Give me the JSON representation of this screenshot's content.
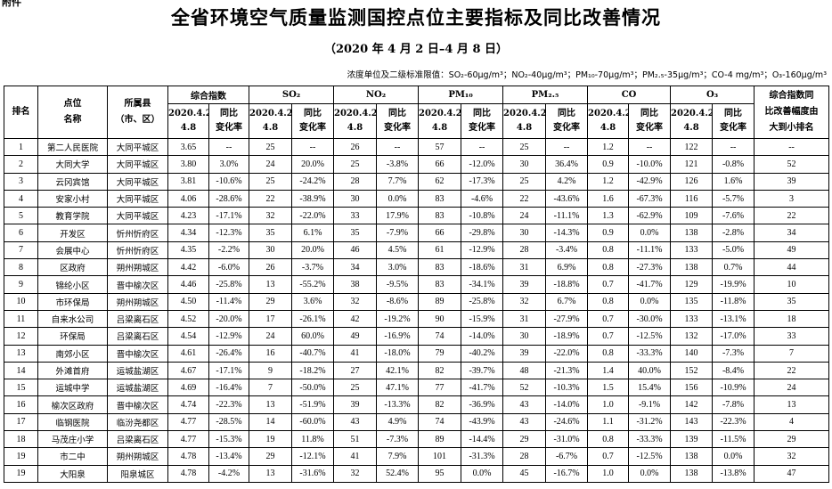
{
  "corner_label": "附件",
  "title": "全省环境空气质量监测国控点位主要指标及同比改善情况",
  "subtitle": "（2020 年 4 月 2 日–4 月 8 日）",
  "note": "浓度单位及二级标准限值：SO₂-60μg/m³；NO₂-40μg/m³；PM₁₀-70μg/m³；PM₂.₅-35μg/m³；CO-4 mg/m³；O₃-160μg/m³",
  "headers": {
    "rank": "排名",
    "site": "点位\n名称",
    "county": "所属县\n（市、区）",
    "groups": [
      "综合指数",
      "SO₂",
      "NO₂",
      "PM₁₀",
      "PM₂.₅",
      "CO",
      "O₃"
    ],
    "period": "2020.4.2-\n4.8",
    "change": "同比\n变化率",
    "last": "综合指数同\n比改善幅度由\n大到小排名"
  },
  "rows": [
    [
      "1",
      "第二人民医院",
      "大同平城区",
      "3.65",
      "--",
      "25",
      "--",
      "26",
      "--",
      "57",
      "--",
      "25",
      "--",
      "1.2",
      "--",
      "122",
      "--",
      "--"
    ],
    [
      "2",
      "大同大学",
      "大同平城区",
      "3.80",
      "3.0%",
      "24",
      "20.0%",
      "25",
      "-3.8%",
      "66",
      "-12.0%",
      "30",
      "36.4%",
      "0.9",
      "-10.0%",
      "121",
      "-0.8%",
      "52"
    ],
    [
      "3",
      "云冈宾馆",
      "大同平城区",
      "3.81",
      "-10.6%",
      "25",
      "-24.2%",
      "28",
      "7.7%",
      "62",
      "-17.3%",
      "25",
      "4.2%",
      "1.2",
      "-42.9%",
      "126",
      "1.6%",
      "39"
    ],
    [
      "4",
      "安家小村",
      "大同平城区",
      "4.06",
      "-28.6%",
      "22",
      "-38.9%",
      "30",
      "0.0%",
      "83",
      "-4.6%",
      "22",
      "-43.6%",
      "1.6",
      "-67.3%",
      "116",
      "-5.7%",
      "3"
    ],
    [
      "5",
      "教育学院",
      "大同平城区",
      "4.23",
      "-17.1%",
      "32",
      "-22.0%",
      "33",
      "17.9%",
      "83",
      "-10.8%",
      "24",
      "-11.1%",
      "1.3",
      "-62.9%",
      "109",
      "-7.6%",
      "22"
    ],
    [
      "6",
      "开发区",
      "忻州忻府区",
      "4.34",
      "-12.3%",
      "35",
      "6.1%",
      "35",
      "-7.9%",
      "66",
      "-29.8%",
      "30",
      "-14.3%",
      "0.9",
      "0.0%",
      "138",
      "-2.8%",
      "34"
    ],
    [
      "7",
      "会展中心",
      "忻州忻府区",
      "4.35",
      "-2.2%",
      "30",
      "20.0%",
      "46",
      "4.5%",
      "61",
      "-12.9%",
      "28",
      "-3.4%",
      "0.8",
      "-11.1%",
      "133",
      "-5.0%",
      "49"
    ],
    [
      "8",
      "区政府",
      "朔州朔城区",
      "4.42",
      "-6.0%",
      "26",
      "-3.7%",
      "34",
      "3.0%",
      "83",
      "-18.6%",
      "31",
      "6.9%",
      "0.8",
      "-27.3%",
      "138",
      "0.7%",
      "44"
    ],
    [
      "9",
      "锦纶小区",
      "晋中榆次区",
      "4.46",
      "-25.8%",
      "13",
      "-55.2%",
      "38",
      "-9.5%",
      "83",
      "-34.1%",
      "39",
      "-18.8%",
      "0.7",
      "-41.7%",
      "129",
      "-19.9%",
      "10"
    ],
    [
      "10",
      "市环保局",
      "朔州朔城区",
      "4.50",
      "-11.4%",
      "29",
      "3.6%",
      "32",
      "-8.6%",
      "89",
      "-25.8%",
      "32",
      "6.7%",
      "0.8",
      "0.0%",
      "135",
      "-11.8%",
      "35"
    ],
    [
      "11",
      "自来水公司",
      "吕梁离石区",
      "4.52",
      "-20.0%",
      "17",
      "-26.1%",
      "42",
      "-19.2%",
      "90",
      "-15.9%",
      "31",
      "-27.9%",
      "0.7",
      "-30.0%",
      "133",
      "-13.1%",
      "18"
    ],
    [
      "12",
      "环保局",
      "吕梁离石区",
      "4.54",
      "-12.9%",
      "24",
      "60.0%",
      "49",
      "-16.9%",
      "74",
      "-14.0%",
      "30",
      "-18.9%",
      "0.7",
      "-12.5%",
      "132",
      "-17.0%",
      "33"
    ],
    [
      "13",
      "南郊小区",
      "晋中榆次区",
      "4.61",
      "-26.4%",
      "16",
      "-40.7%",
      "41",
      "-18.0%",
      "79",
      "-40.2%",
      "39",
      "-22.0%",
      "0.8",
      "-33.3%",
      "140",
      "-7.3%",
      "7"
    ],
    [
      "14",
      "外滩首府",
      "运城盐湖区",
      "4.67",
      "-17.1%",
      "9",
      "-18.2%",
      "27",
      "42.1%",
      "82",
      "-39.7%",
      "48",
      "-21.3%",
      "1.4",
      "40.0%",
      "152",
      "-8.4%",
      "22"
    ],
    [
      "15",
      "运城中学",
      "运城盐湖区",
      "4.69",
      "-16.4%",
      "7",
      "-50.0%",
      "25",
      "47.1%",
      "77",
      "-41.7%",
      "52",
      "-10.3%",
      "1.5",
      "15.4%",
      "156",
      "-10.9%",
      "24"
    ],
    [
      "16",
      "榆次区政府",
      "晋中榆次区",
      "4.74",
      "-22.3%",
      "13",
      "-51.9%",
      "39",
      "-13.3%",
      "82",
      "-36.9%",
      "43",
      "-14.0%",
      "1.0",
      "-9.1%",
      "142",
      "-7.8%",
      "13"
    ],
    [
      "17",
      "临钢医院",
      "临汾尧都区",
      "4.77",
      "-28.5%",
      "14",
      "-60.0%",
      "43",
      "4.9%",
      "74",
      "-43.9%",
      "43",
      "-24.6%",
      "1.1",
      "-31.2%",
      "143",
      "-22.3%",
      "4"
    ],
    [
      "18",
      "马茂庄小学",
      "吕梁离石区",
      "4.77",
      "-15.3%",
      "19",
      "11.8%",
      "51",
      "-7.3%",
      "89",
      "-14.4%",
      "29",
      "-31.0%",
      "0.8",
      "-33.3%",
      "139",
      "-11.5%",
      "29"
    ],
    [
      "19",
      "市二中",
      "朔州朔城区",
      "4.78",
      "-13.4%",
      "29",
      "-12.1%",
      "41",
      "7.9%",
      "101",
      "-31.3%",
      "28",
      "-6.7%",
      "0.7",
      "-12.5%",
      "138",
      "0.0%",
      "32"
    ],
    [
      "19",
      "大阳泉",
      "阳泉城区",
      "4.78",
      "-4.2%",
      "13",
      "-31.6%",
      "32",
      "52.4%",
      "95",
      "0.0%",
      "45",
      "-16.7%",
      "1.0",
      "0.0%",
      "138",
      "-13.8%",
      "47"
    ]
  ]
}
